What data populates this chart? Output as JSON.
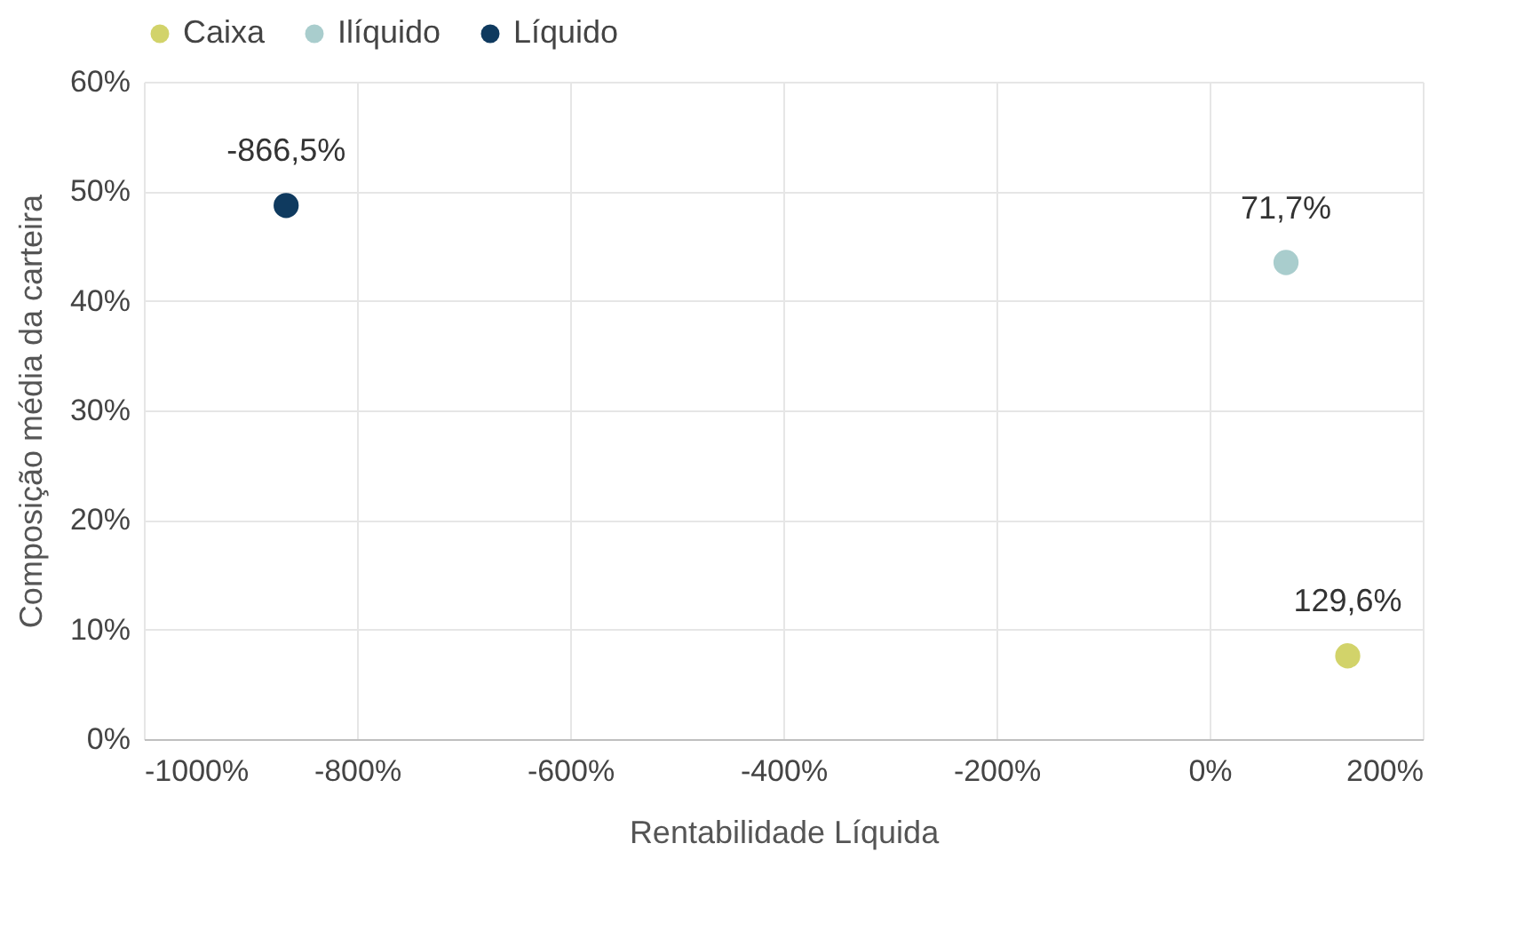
{
  "chart_data": {
    "type": "scatter",
    "xlabel": "Rentabilidade Líquida",
    "ylabel": "Composição média da carteira",
    "series": [
      {
        "name": "Caixa",
        "color": "#d2d36a",
        "x": [
          129.6
        ],
        "values": [
          7.6
        ]
      },
      {
        "name": "Ilíquido",
        "color": "#a9cdcd",
        "x": [
          71.7
        ],
        "values": [
          43.5
        ]
      },
      {
        "name": "Líquido",
        "color": "#0f3a5f",
        "x": [
          -866.5
        ],
        "values": [
          48.7
        ]
      }
    ],
    "annotations": [
      {
        "text": "129,6%",
        "x": 129.6,
        "y": 7.6
      },
      {
        "text": "71,7%",
        "x": 71.7,
        "y": 43.5
      },
      {
        "text": "-866,5%",
        "x": -866.5,
        "y": 48.7
      }
    ],
    "xlim": [
      -1000,
      200
    ],
    "xticks": [
      {
        "value": -1000,
        "label": "-1000%"
      },
      {
        "value": -800,
        "label": "-800%"
      },
      {
        "value": -600,
        "label": "-600%"
      },
      {
        "value": -400,
        "label": "-400%"
      },
      {
        "value": -200,
        "label": "-200%"
      },
      {
        "value": 0,
        "label": "0%"
      },
      {
        "value": 200,
        "label": "200%"
      }
    ],
    "ylim": [
      0,
      60
    ],
    "yticks": [
      {
        "value": 0,
        "label": "0%"
      },
      {
        "value": 10,
        "label": "10%"
      },
      {
        "value": 20,
        "label": "20%"
      },
      {
        "value": 30,
        "label": "30%"
      },
      {
        "value": 40,
        "label": "40%"
      },
      {
        "value": 50,
        "label": "50%"
      },
      {
        "value": 60,
        "label": "60%"
      }
    ],
    "grid": true,
    "legend": "top",
    "marker": "circle"
  }
}
